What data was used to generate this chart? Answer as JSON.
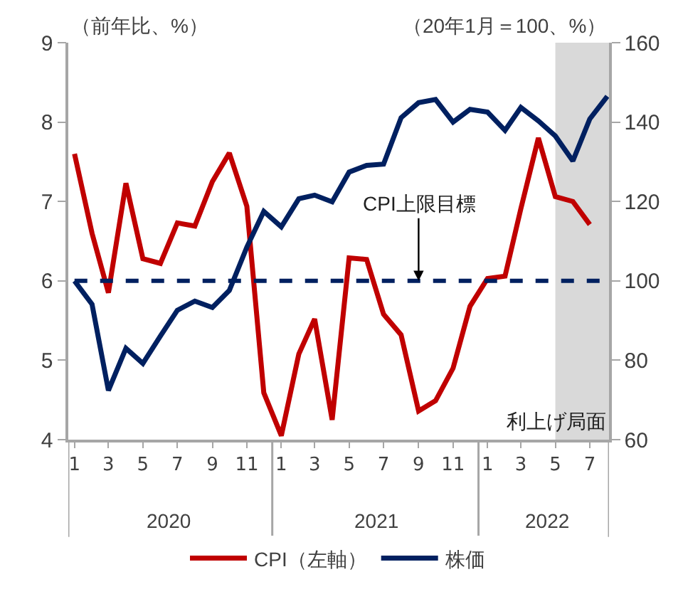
{
  "chart_data": {
    "type": "line",
    "ylabel": "（前年比、%）",
    "y2label": "（20年1月＝100、%）",
    "x": [
      "2020-01",
      "2020-02",
      "2020-03",
      "2020-04",
      "2020-05",
      "2020-06",
      "2020-07",
      "2020-08",
      "2020-09",
      "2020-10",
      "2020-11",
      "2020-12",
      "2021-01",
      "2021-02",
      "2021-03",
      "2021-04",
      "2021-05",
      "2021-06",
      "2021-07",
      "2021-08",
      "2021-09",
      "2021-10",
      "2021-11",
      "2021-12",
      "2022-01",
      "2022-02",
      "2022-03",
      "2022-04",
      "2022-05",
      "2022-06",
      "2022-07",
      "2022-08"
    ],
    "series": [
      {
        "name": "CPI（左軸）",
        "color": "#c00000",
        "axis": "y",
        "values": [
          7.6,
          6.6,
          5.85,
          7.23,
          6.28,
          6.22,
          6.73,
          6.69,
          7.25,
          7.61,
          6.94,
          4.59,
          4.05,
          5.08,
          5.52,
          4.25,
          6.29,
          6.27,
          5.58,
          5.32,
          4.36,
          4.49,
          4.9,
          5.68,
          6.03,
          6.06,
          6.91,
          7.8,
          7.06,
          7.0,
          6.71,
          null
        ]
      },
      {
        "name": "株価",
        "color": "#002060",
        "axis": "y2",
        "values": [
          100,
          94.1,
          72.4,
          83.0,
          79.2,
          86.1,
          92.6,
          94.9,
          93.3,
          97.6,
          108.5,
          117.5,
          113.6,
          120.7,
          121.6,
          119.9,
          127.4,
          129.1,
          129.4,
          141.1,
          144.9,
          145.7,
          140.0,
          143.2,
          142.5,
          137.9,
          143.7,
          140.3,
          136.5,
          130.2,
          140.8,
          146.5
        ]
      }
    ],
    "xlim": [
      "2019-12-21",
      "2022-08-04"
    ],
    "xticks": [
      {
        "value": "2020-01",
        "label": "1"
      },
      {
        "value": "2020-03",
        "label": "3"
      },
      {
        "value": "2020-05",
        "label": "5"
      },
      {
        "value": "2020-07",
        "label": "7"
      },
      {
        "value": "2020-09",
        "label": "9"
      },
      {
        "value": "2020-11",
        "label": "11"
      },
      {
        "value": "2021-01",
        "label": "1"
      },
      {
        "value": "2021-03",
        "label": "3"
      },
      {
        "value": "2021-05",
        "label": "5"
      },
      {
        "value": "2021-07",
        "label": "7"
      },
      {
        "value": "2021-09",
        "label": "9"
      },
      {
        "value": "2021-11",
        "label": "11"
      },
      {
        "value": "2022-01",
        "label": "1"
      },
      {
        "value": "2022-03",
        "label": "3"
      },
      {
        "value": "2022-05",
        "label": "5"
      },
      {
        "value": "2022-07",
        "label": "7"
      }
    ],
    "ylim": [
      4,
      9
    ],
    "yticks": [
      4,
      5,
      6,
      7,
      8,
      9
    ],
    "y2lim": [
      60,
      160
    ],
    "y2ticks": [
      60,
      80,
      100,
      120,
      140,
      160
    ],
    "annotations": [
      "2020",
      "2021",
      "2022",
      {
        "text": "CPI上限目標",
        "x": "2021-09",
        "y": 6
      }
    ],
    "ref_lines": [
      {
        "axis": "y",
        "value": 6,
        "color": "#002060",
        "line_style": "dashed"
      }
    ],
    "bands": [
      {
        "axis": "x",
        "from": "2022-05-01",
        "to": "2022-08-04",
        "label": "利上げ局面",
        "color": "#d9d9d9"
      }
    ],
    "grid": false,
    "legend": "bottom",
    "marker": "none",
    "line_style": "solid"
  }
}
